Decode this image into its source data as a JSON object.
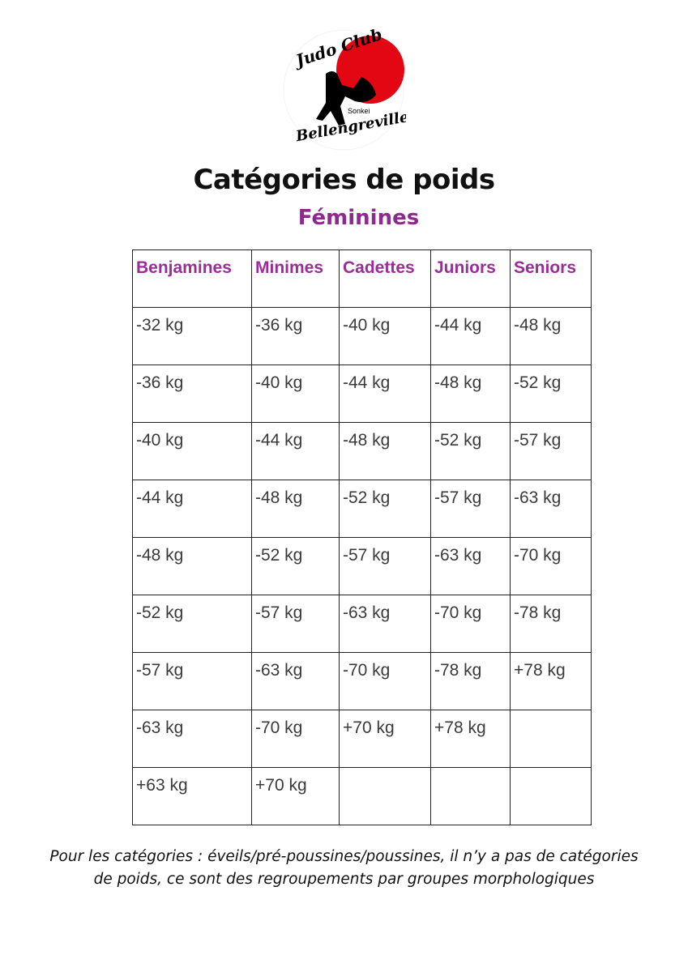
{
  "logo": {
    "line1": "Judo Club",
    "line2": "Sonkei",
    "line3": "Bellengreville",
    "accent": "#e30613"
  },
  "title": "Catégories de poids",
  "subtitle": "Féminines",
  "table": {
    "headers": [
      "Benjamines",
      "Minimes",
      "Cadettes",
      "Juniors",
      "Seniors"
    ],
    "rows": [
      [
        "-32 kg",
        "-36 kg",
        "-40 kg",
        "-44 kg",
        "-48 kg"
      ],
      [
        "-36 kg",
        "-40 kg",
        "-44 kg",
        "-48 kg",
        "-52 kg"
      ],
      [
        "-40 kg",
        "-44 kg",
        "-48 kg",
        "-52 kg",
        "-57 kg"
      ],
      [
        "-44 kg",
        "-48 kg",
        "-52 kg",
        "-57 kg",
        "-63 kg"
      ],
      [
        "-48 kg",
        "-52 kg",
        "-57 kg",
        "-63 kg",
        "-70 kg"
      ],
      [
        "-52 kg",
        "-57 kg",
        "-63 kg",
        "-70 kg",
        "-78 kg"
      ],
      [
        "-57 kg",
        "-63 kg",
        "-70 kg",
        "-78 kg",
        "+78 kg"
      ],
      [
        "-63 kg",
        "-70 kg",
        "+70 kg",
        "+78 kg",
        ""
      ],
      [
        "+63 kg",
        "+70 kg",
        "",
        "",
        ""
      ]
    ]
  },
  "note": {
    "line1": "Pour les catégories : éveils/pré-poussines/poussines, il n’y a pas de catégories",
    "line2": "de poids, ce sont des regroupements par groupes morphologiques"
  }
}
